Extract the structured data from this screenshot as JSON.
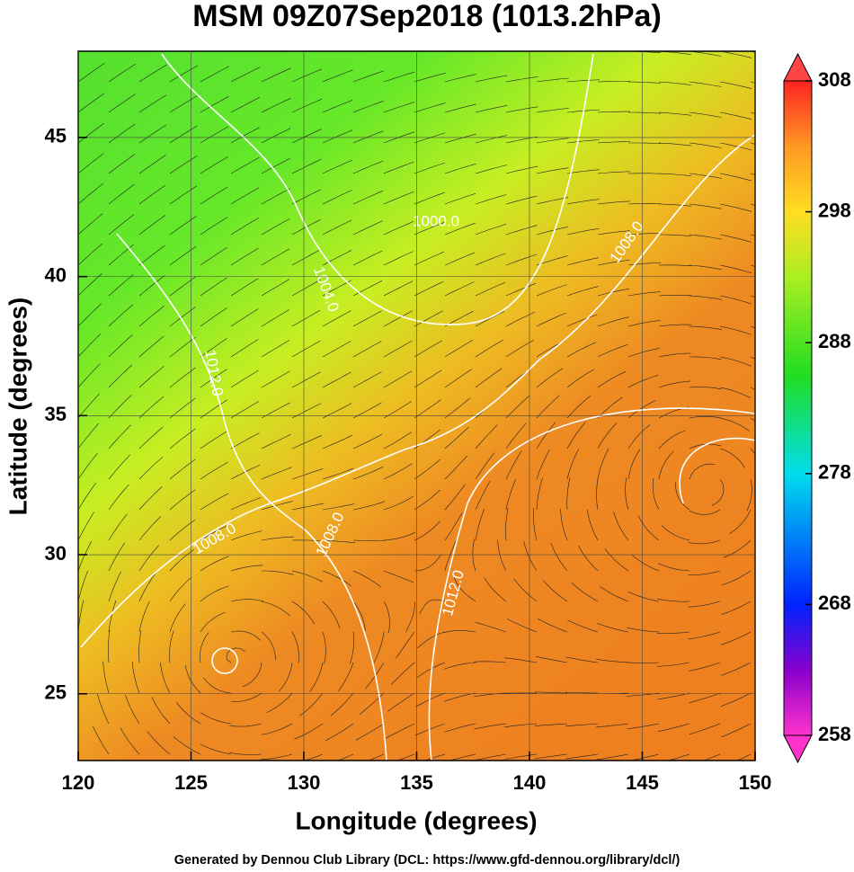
{
  "chart_data": {
    "type": "contour",
    "title": "MSM 09Z07Sep2018 (1013.2hPa)",
    "x_label": "Longitude (degrees)",
    "y_label": "Latitude  (degrees)",
    "xlim": [
      120,
      150
    ],
    "xticks": [
      120,
      125,
      130,
      135,
      140,
      145,
      150
    ],
    "ylim": [
      22.6,
      48.1
    ],
    "yticks": [
      25,
      30,
      35,
      40,
      45
    ],
    "colorbar": {
      "lim": [
        258,
        308
      ],
      "ticks": [
        258,
        268,
        278,
        288,
        298,
        308
      ]
    },
    "contour_labels": [
      "1000.0",
      "1004.0",
      "1008.0",
      "1012.0",
      "1008.0",
      "1008.0",
      "1012.0"
    ],
    "footer": "Generated by Dennou Club Library (DCL: https://www.gfd-dennou.org/library/dcl/)"
  }
}
